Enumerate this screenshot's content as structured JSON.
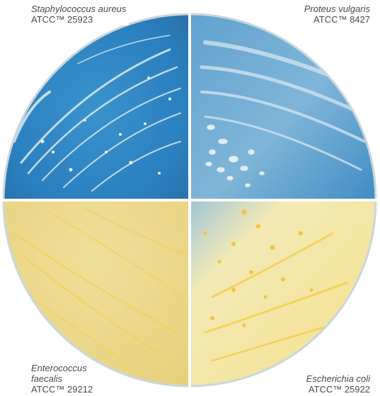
{
  "colors": {
    "blue_agar": "#2f86c3",
    "blue_agar_light": "#6fa9cf",
    "yellow_agar": "#ecd98a",
    "yellow_agar_light": "#f5e7a8",
    "colony_white": "#e8f0f3",
    "colony_yellow": "#f3c43c",
    "divider": "#ffffff"
  },
  "quadrants": [
    {
      "name": "top-left",
      "species": "Staphylococcus aureus",
      "strain": "ATCC™ 25923",
      "agar_color": "blue"
    },
    {
      "name": "top-right",
      "species": "Proteus vulgaris",
      "strain": "ATCC™ 8427",
      "agar_color": "blue"
    },
    {
      "name": "bottom-left",
      "species_line1": "Enterococcus",
      "species_line2": "faecalis",
      "strain": "ATCC™ 29212",
      "agar_color": "yellow"
    },
    {
      "name": "bottom-right",
      "species": "Escherichia coli",
      "strain": "ATCC™ 25922",
      "agar_color": "yellow"
    }
  ]
}
